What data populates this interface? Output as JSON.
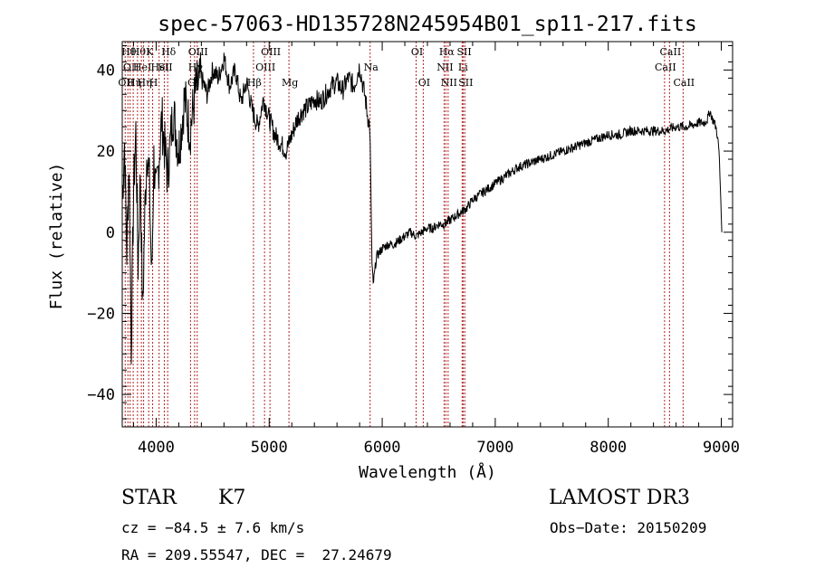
{
  "chart_data": {
    "type": "line",
    "title": "spec-57063-HD135728N245954B01_sp11-217.fits",
    "xlabel": "Wavelength (Å)",
    "ylabel": "Flux (relative)",
    "xlim": [
      3700,
      9100
    ],
    "ylim": [
      -48,
      47
    ],
    "xticks": [
      4000,
      5000,
      6000,
      7000,
      8000,
      9000
    ],
    "yticks": [
      -40,
      -20,
      0,
      20,
      40
    ],
    "xtick_labels": [
      "4000",
      "5000",
      "6000",
      "7000",
      "8000",
      "9000"
    ],
    "ytick_labels": [
      "−40",
      "−20",
      "0",
      "20",
      "40"
    ],
    "series": [
      {
        "name": "spectrum",
        "x": [
          3700,
          3720,
          3740,
          3760,
          3780,
          3800,
          3820,
          3840,
          3860,
          3880,
          3900,
          3920,
          3940,
          3960,
          3980,
          4000,
          4050,
          4100,
          4150,
          4200,
          4250,
          4300,
          4350,
          4400,
          4450,
          4500,
          4550,
          4600,
          4650,
          4700,
          4750,
          4800,
          4850,
          4900,
          4950,
          5000,
          5050,
          5100,
          5150,
          5200,
          5250,
          5300,
          5350,
          5400,
          5450,
          5500,
          5550,
          5600,
          5650,
          5700,
          5750,
          5800,
          5830,
          5850,
          5870,
          5890,
          5900,
          5910,
          5920,
          5950,
          6000,
          6050,
          6100,
          6150,
          6200,
          6250,
          6300,
          6350,
          6400,
          6450,
          6500,
          6550,
          6600,
          6650,
          6700,
          6750,
          6800,
          6900,
          7000,
          7100,
          7200,
          7300,
          7400,
          7500,
          7600,
          7700,
          7800,
          7900,
          8000,
          8100,
          8200,
          8300,
          8400,
          8500,
          8600,
          8700,
          8800,
          8850,
          8880,
          8900,
          8920,
          8940,
          8960,
          8980,
          9000,
          9005
        ],
        "y": [
          8,
          22,
          -5,
          18,
          -28,
          10,
          25,
          -8,
          15,
          -20,
          5,
          22,
          12,
          -12,
          18,
          8,
          28,
          14,
          30,
          20,
          33,
          25,
          35,
          38,
          34,
          40,
          38,
          43,
          36,
          40,
          32,
          37,
          30,
          26,
          33,
          28,
          24,
          22,
          20,
          24,
          28,
          30,
          31,
          33,
          32,
          34,
          36,
          37,
          35,
          38,
          36,
          41,
          36,
          33,
          29,
          26,
          10,
          -8,
          -13,
          -6,
          -4,
          -3,
          -3,
          -2,
          -1,
          0,
          -1,
          0,
          1,
          1,
          2,
          2,
          3,
          4,
          5,
          6,
          8,
          10,
          12,
          14,
          16,
          17,
          18,
          19,
          20,
          21,
          22,
          23,
          24,
          24,
          25,
          25,
          25,
          25,
          26,
          26,
          27,
          27,
          28,
          30,
          28,
          27,
          25,
          20,
          5,
          0
        ]
      }
    ],
    "line_ids": [
      {
        "wave": 3726,
        "label": "OII",
        "row": 2
      },
      {
        "wave": 3750,
        "label": "Hθ",
        "row": 0
      },
      {
        "wave": 3770,
        "label": "OII",
        "row": 1
      },
      {
        "wave": 3797,
        "label": "Hη",
        "row": 2
      },
      {
        "wave": 3835,
        "label": "Hθ",
        "row": 0
      },
      {
        "wave": 3869,
        "label": "HeI",
        "row": 1
      },
      {
        "wave": 3889,
        "label": "Hη",
        "row": 2
      },
      {
        "wave": 3934,
        "label": "K",
        "row": 0
      },
      {
        "wave": 3969,
        "label": "H",
        "row": 2
      },
      {
        "wave": 4026,
        "label": "HeI",
        "row": 1
      },
      {
        "wave": 4072,
        "label": "SII",
        "row": 1
      },
      {
        "wave": 4102,
        "label": "Hδ",
        "row": 0
      },
      {
        "wave": 4304,
        "label": "G",
        "row": 2
      },
      {
        "wave": 4340,
        "label": "Hγ",
        "row": 1
      },
      {
        "wave": 4363,
        "label": "OIII",
        "row": 0
      },
      {
        "wave": 4861,
        "label": "Hβ",
        "row": 2
      },
      {
        "wave": 4959,
        "label": "OIII",
        "row": 1
      },
      {
        "wave": 5007,
        "label": "OIII",
        "row": 0
      },
      {
        "wave": 5175,
        "label": "Mg",
        "row": 2
      },
      {
        "wave": 5893,
        "label": "Na",
        "row": 1
      },
      {
        "wave": 6300,
        "label": "OI",
        "row": 0
      },
      {
        "wave": 6363,
        "label": "OI",
        "row": 2
      },
      {
        "wave": 6548,
        "label": "NII",
        "row": 1
      },
      {
        "wave": 6563,
        "label": "Hα",
        "row": 0
      },
      {
        "wave": 6583,
        "label": "NII",
        "row": 2
      },
      {
        "wave": 6707,
        "label": "Li",
        "row": 1
      },
      {
        "wave": 6717,
        "label": "SII",
        "row": 0
      },
      {
        "wave": 6731,
        "label": "SII",
        "row": 2
      },
      {
        "wave": 8498,
        "label": "CaII",
        "row": 1
      },
      {
        "wave": 8542,
        "label": "CaII",
        "row": 0
      },
      {
        "wave": 8662,
        "label": "CaII",
        "row": 2
      }
    ]
  },
  "info": {
    "class": "STAR",
    "subclass": "K7",
    "survey": "LAMOST DR3",
    "cz": "cz = −84.5 ± 7.6 km/s",
    "obs_date": "Obs−Date: 20150209",
    "coords": "RA = 209.55547, DEC =  27.24679"
  }
}
